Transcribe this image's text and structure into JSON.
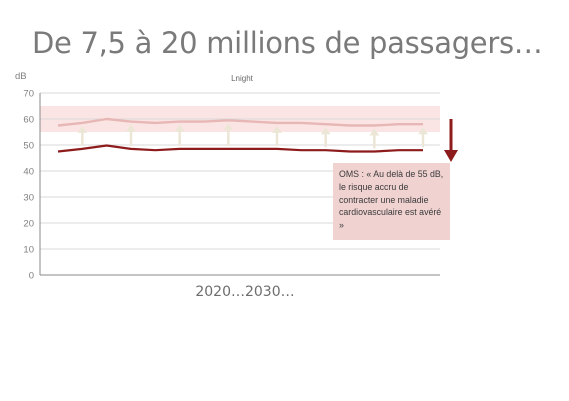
{
  "slide": {
    "title": "De 7,5 à 20 millions de passagers…"
  },
  "chart_data": {
    "type": "line",
    "title": "Lnight",
    "xlabel": "2020…2030…",
    "ylabel": "dB",
    "ylim": [
      0,
      70
    ],
    "yticks": [
      0,
      10,
      20,
      30,
      40,
      50,
      60,
      70
    ],
    "grid": true,
    "legend": "none",
    "threshold_band": {
      "from": 55,
      "to": 65,
      "color": "#fbe5e4"
    },
    "arrow_positions": [
      1,
      3,
      5,
      7,
      9,
      11,
      13,
      15
    ],
    "series": [
      {
        "color": "#e7b7b5",
        "values": [
          57.5,
          58.5,
          60,
          59,
          58.5,
          59,
          59,
          59.5,
          59,
          58.5,
          58.5,
          58,
          57.5,
          57.5,
          58,
          58
        ]
      },
      {
        "color": "#8e1b1b",
        "values": [
          47.5,
          48.5,
          49.8,
          48.5,
          48,
          48.5,
          48.5,
          48.5,
          48.5,
          48.5,
          48,
          48,
          47.5,
          47.5,
          48,
          48
        ]
      }
    ],
    "annotation": {
      "text": "OMS : « Au delà de 55 dB, le risque accru de contracter une maladie cardiovasculaire est avéré »",
      "color": "#f0d2d1",
      "arrow_color": "#8e1b1b"
    },
    "colors": {
      "grid": "#d9d9d9",
      "axis": "#888888",
      "up_arrow": "#ece6d6",
      "tick_label": "#7f7f7f"
    }
  }
}
